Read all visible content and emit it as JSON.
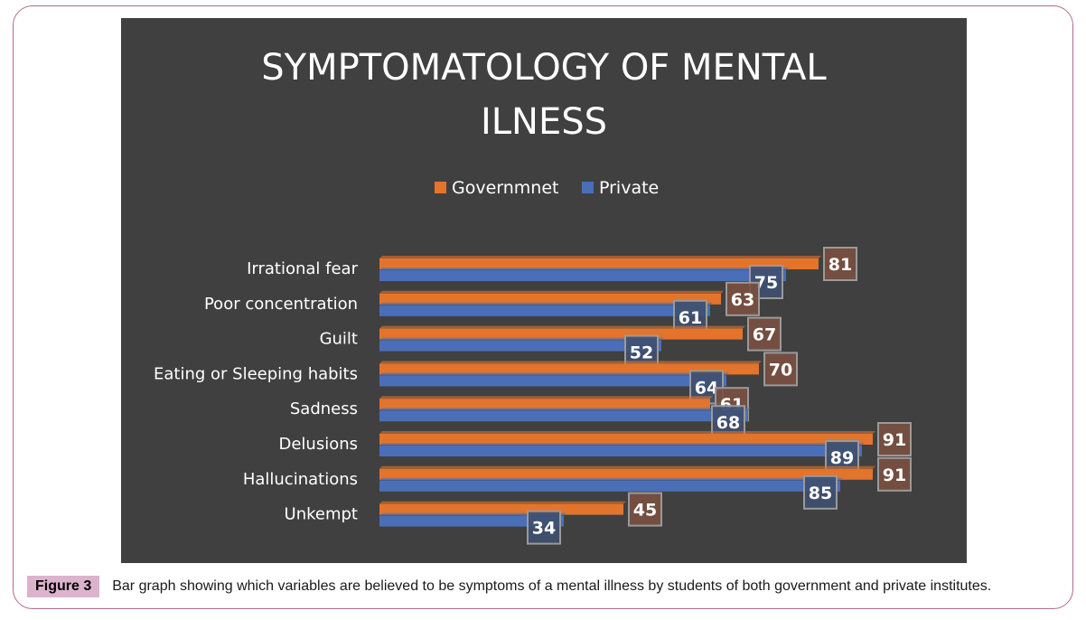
{
  "figure": {
    "label": "Figure 3",
    "caption": "Bar graph showing which variables are believed to be symptoms of a mental illness by students of both government and private institutes."
  },
  "colors": {
    "background": "#404040",
    "government": "#e3742c",
    "private": "#4a6fb8",
    "text": "#ffffff"
  },
  "chart_data": {
    "type": "bar",
    "orientation": "horizontal",
    "title_lines": [
      "SYMPTOMATOLOGY OF MENTAL",
      "ILNESS"
    ],
    "legend_position": "top",
    "grid": false,
    "categories": [
      "Irrational fear",
      "Poor concentration",
      "Guilt",
      "Eating or Sleeping habits",
      "Sadness",
      "Delusions",
      "Hallucinations",
      "Unkempt"
    ],
    "series": [
      {
        "name": "Governmnet",
        "values": [
          81,
          63,
          67,
          70,
          61,
          91,
          91,
          45
        ]
      },
      {
        "name": "Private",
        "values": [
          75,
          61,
          52,
          64,
          68,
          89,
          85,
          34
        ]
      }
    ],
    "xlim": [
      0,
      100
    ]
  }
}
